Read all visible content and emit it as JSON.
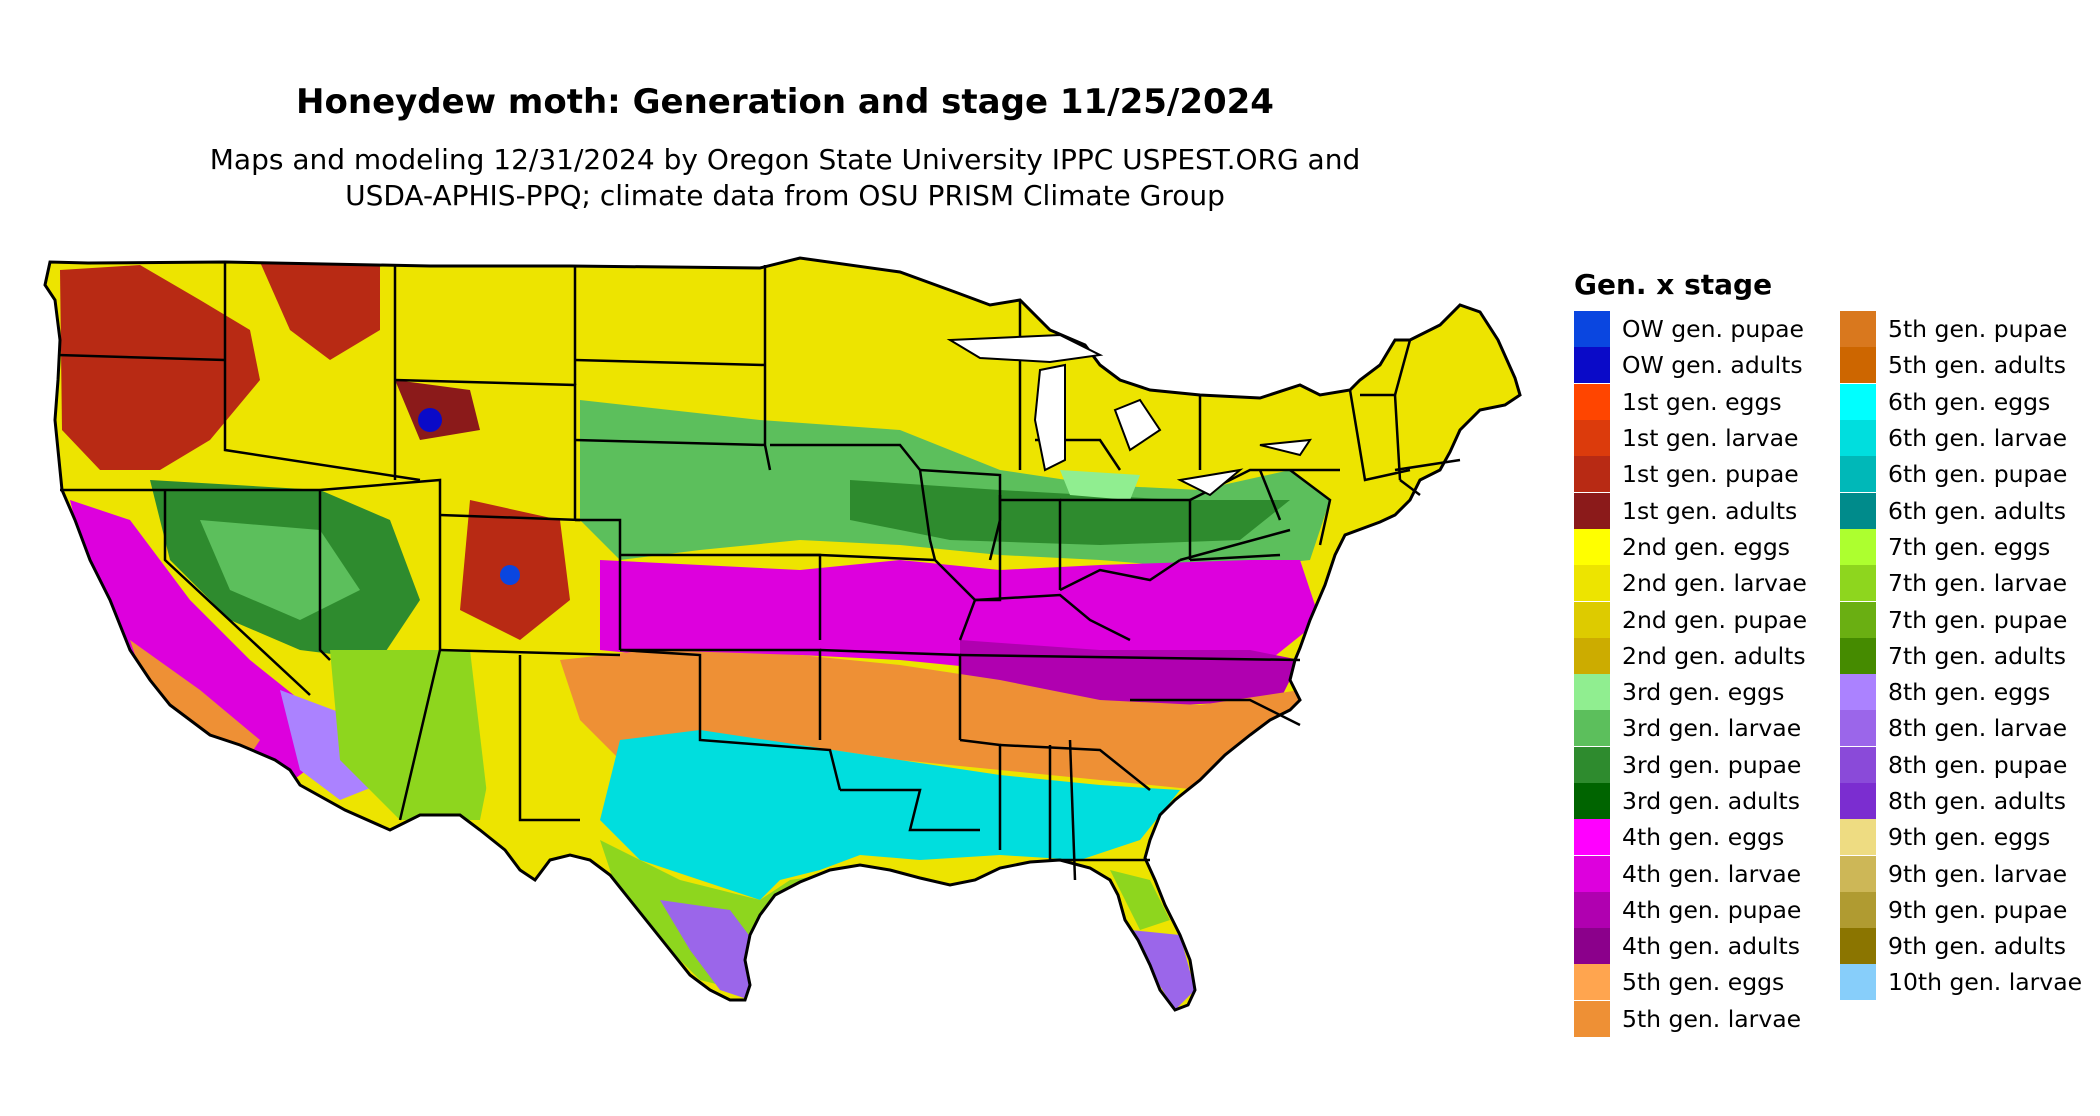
{
  "title": "Honeydew moth: Generation and stage 11/25/2024",
  "subtitle": {
    "line1": "Maps and modeling 12/31/2024 by Oregon State University IPPC USPEST.ORG and",
    "line2": "USDA-APHIS-PPQ; climate data from OSU PRISM Climate Group"
  },
  "legend": {
    "title": "Gen. x stage",
    "col1": [
      {
        "label": "OW gen. pupae",
        "color": "#0a46e0"
      },
      {
        "label": "OW gen. adults",
        "color": "#0a0ac8"
      },
      {
        "label": "1st gen. eggs",
        "color": "#ff4500"
      },
      {
        "label": "1st gen. larvae",
        "color": "#dc3b0c"
      },
      {
        "label": "1st gen. pupae",
        "color": "#b82a14"
      },
      {
        "label": "1st gen. adults",
        "color": "#8b1a1a"
      },
      {
        "label": "2nd gen. eggs",
        "color": "#ffff00"
      },
      {
        "label": "2nd gen. larvae",
        "color": "#ede400"
      },
      {
        "label": "2nd gen. pupae",
        "color": "#ddcb00"
      },
      {
        "label": "2nd gen. adults",
        "color": "#ccac00"
      },
      {
        "label": "3rd gen. eggs",
        "color": "#90ee90"
      },
      {
        "label": "3rd gen. larvae",
        "color": "#5cbf5c"
      },
      {
        "label": "3rd gen. pupae",
        "color": "#2e8b2e"
      },
      {
        "label": "3rd gen. adults",
        "color": "#006400"
      },
      {
        "label": "4th gen. eggs",
        "color": "#ff00ff"
      },
      {
        "label": "4th gen. larvae",
        "color": "#dd00dd"
      },
      {
        "label": "4th gen. pupae",
        "color": "#b000b0"
      },
      {
        "label": "4th gen. adults",
        "color": "#8b008b"
      },
      {
        "label": "5th gen. eggs",
        "color": "#ffa54f"
      },
      {
        "label": "5th gen. larvae",
        "color": "#ee9035"
      }
    ],
    "col2": [
      {
        "label": "5th gen. pupae",
        "color": "#d9781e"
      },
      {
        "label": "5th gen. adults",
        "color": "#cd6600"
      },
      {
        "label": "6th gen. eggs",
        "color": "#00ffff"
      },
      {
        "label": "6th gen. larvae",
        "color": "#00dede"
      },
      {
        "label": "6th gen. pupae",
        "color": "#00b8b8"
      },
      {
        "label": "6th gen. adults",
        "color": "#008b8b"
      },
      {
        "label": "7th gen. eggs",
        "color": "#adff2f"
      },
      {
        "label": "7th gen. larvae",
        "color": "#8ed61e"
      },
      {
        "label": "7th gen. pupae",
        "color": "#6aaf12"
      },
      {
        "label": "7th gen. adults",
        "color": "#458b00"
      },
      {
        "label": "8th gen. eggs",
        "color": "#ab82ff"
      },
      {
        "label": "8th gen. larvae",
        "color": "#9b66ea"
      },
      {
        "label": "8th gen. pupae",
        "color": "#8a4ad9"
      },
      {
        "label": "8th gen. adults",
        "color": "#7b2dd0"
      },
      {
        "label": "9th gen. eggs",
        "color": "#eedc82"
      },
      {
        "label": "9th gen. larvae",
        "color": "#cdb757"
      },
      {
        "label": "9th gen. pupae",
        "color": "#b09b31"
      },
      {
        "label": "9th gen. adults",
        "color": "#8b7500"
      },
      {
        "label": "10th gen. larvae",
        "color": "#87cefa"
      }
    ]
  }
}
